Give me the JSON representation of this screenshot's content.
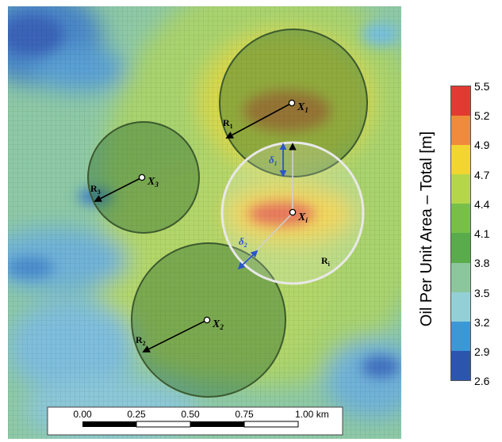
{
  "map": {
    "points": [
      {
        "id": "X1",
        "label_main": "X",
        "label_sub": "1"
      },
      {
        "id": "Xi",
        "label_main": "X",
        "label_sub": "i"
      },
      {
        "id": "X2",
        "label_main": "X",
        "label_sub": "2"
      },
      {
        "id": "X3",
        "label_main": "X",
        "label_sub": "3"
      }
    ],
    "radii": [
      {
        "id": "R1",
        "label_main": "R",
        "label_sub": "1"
      },
      {
        "id": "R2",
        "label_main": "R",
        "label_sub": "2"
      },
      {
        "id": "R3",
        "label_main": "R",
        "label_sub": "3"
      },
      {
        "id": "Ri",
        "label_main": "R",
        "label_sub": "i"
      }
    ],
    "deltas": [
      {
        "id": "delta1",
        "label_main": "δ",
        "label_sub": "1"
      },
      {
        "id": "delta2",
        "label_main": "δ",
        "label_sub": "2"
      }
    ],
    "colors": {
      "region_fill": "#2d6b2e",
      "focus_outline": "#e8e8e8",
      "delta_arrow": "#2b56c8",
      "radius_arrow": "#000000"
    }
  },
  "scalebar": {
    "labels": [
      "0.00",
      "0.25",
      "0.50",
      "0.75",
      "1.00 km"
    ],
    "segments_km": [
      0,
      0.25,
      0.5,
      0.75,
      1.0
    ]
  },
  "colorbar": {
    "title": "Oil Per Unit Area – Total [m]",
    "ticks": [
      "5.5",
      "5.2",
      "4.9",
      "4.7",
      "4.4",
      "4.1",
      "3.8",
      "3.5",
      "3.2",
      "2.9",
      "2.6"
    ],
    "colors": [
      "#e23a32",
      "#f08a3c",
      "#f2d52f",
      "#b6d64a",
      "#78bf4a",
      "#59ab4b",
      "#8cc69c",
      "#93d0d6",
      "#3d97d2",
      "#2c55ae"
    ]
  }
}
